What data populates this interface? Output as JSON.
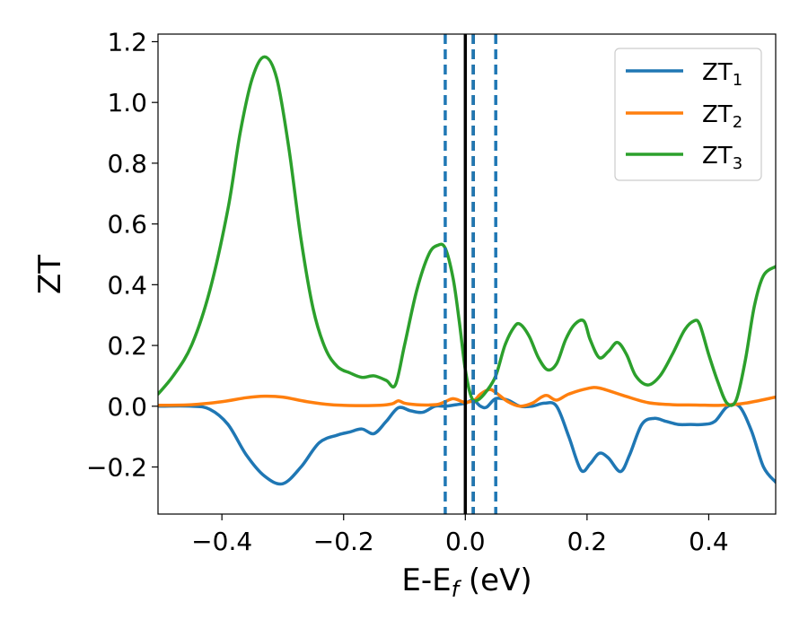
{
  "chart_data": {
    "type": "line",
    "xlabel": "E-E",
    "xlabel_sub": "f",
    "xlabel_unit": " (eV)",
    "ylabel": "ZT",
    "xlim": [
      -0.505,
      0.51
    ],
    "ylim": [
      -0.355,
      1.225
    ],
    "x_ticks": [
      -0.4,
      -0.2,
      0.0,
      0.2,
      0.4
    ],
    "x_tick_labels": [
      "−0.4",
      "−0.2",
      "0.0",
      "0.2",
      "0.4"
    ],
    "y_ticks": [
      -0.2,
      0.0,
      0.2,
      0.4,
      0.6,
      0.8,
      1.0,
      1.2
    ],
    "y_tick_labels": [
      "−0.2",
      "0.0",
      "0.2",
      "0.4",
      "0.6",
      "0.8",
      "1.0",
      "1.2"
    ],
    "grid": false,
    "legend_position": "top-right",
    "vlines": [
      {
        "x": 0.0,
        "style": "solid",
        "color": "#000000"
      },
      {
        "x": 0.013,
        "style": "dashed",
        "color": "#000000"
      },
      {
        "x": -0.033,
        "style": "dashed",
        "color": "#1f77b4"
      },
      {
        "x": 0.013,
        "style": "dashed",
        "color": "#1f77b4"
      },
      {
        "x": 0.05,
        "style": "dashed",
        "color": "#1f77b4"
      }
    ],
    "series": [
      {
        "name": "ZT",
        "subscript": "1",
        "color": "#1f77b4",
        "x": [
          -0.505,
          -0.45,
          -0.42,
          -0.39,
          -0.36,
          -0.33,
          -0.3,
          -0.27,
          -0.24,
          -0.21,
          -0.19,
          -0.17,
          -0.15,
          -0.13,
          -0.11,
          -0.09,
          -0.07,
          -0.05,
          -0.033,
          -0.015,
          0.0,
          0.013,
          0.025,
          0.035,
          0.05,
          0.07,
          0.09,
          0.11,
          0.13,
          0.15,
          0.17,
          0.19,
          0.205,
          0.22,
          0.235,
          0.255,
          0.27,
          0.29,
          0.31,
          0.33,
          0.35,
          0.37,
          0.39,
          0.41,
          0.43,
          0.45,
          0.47,
          0.49,
          0.51
        ],
        "y": [
          0.0,
          0.0,
          -0.01,
          -0.06,
          -0.16,
          -0.23,
          -0.255,
          -0.2,
          -0.12,
          -0.095,
          -0.085,
          -0.075,
          -0.09,
          -0.05,
          -0.005,
          -0.015,
          -0.02,
          0.0,
          0.0,
          0.005,
          0.01,
          0.02,
          0.0,
          -0.003,
          0.025,
          0.02,
          0.0,
          0.0,
          0.01,
          0.0,
          -0.1,
          -0.21,
          -0.19,
          -0.155,
          -0.17,
          -0.215,
          -0.16,
          -0.06,
          -0.04,
          -0.05,
          -0.06,
          -0.06,
          -0.06,
          -0.05,
          -0.002,
          0.0,
          -0.08,
          -0.2,
          -0.25
        ]
      },
      {
        "name": "ZT",
        "subscript": "2",
        "color": "#ff7f0e",
        "x": [
          -0.505,
          -0.45,
          -0.4,
          -0.36,
          -0.33,
          -0.3,
          -0.26,
          -0.22,
          -0.18,
          -0.14,
          -0.12,
          -0.11,
          -0.1,
          -0.08,
          -0.06,
          -0.045,
          -0.033,
          -0.02,
          -0.005,
          0.0,
          0.015,
          0.025,
          0.04,
          0.05,
          0.07,
          0.09,
          0.11,
          0.125,
          0.135,
          0.15,
          0.17,
          0.2,
          0.22,
          0.26,
          0.3,
          0.34,
          0.38,
          0.42,
          0.46,
          0.51
        ],
        "y": [
          0.003,
          0.005,
          0.015,
          0.028,
          0.033,
          0.03,
          0.015,
          0.005,
          0.002,
          0.003,
          0.008,
          0.018,
          0.01,
          0.005,
          0.004,
          0.006,
          0.015,
          0.025,
          0.015,
          0.012,
          0.02,
          0.04,
          0.055,
          0.045,
          0.015,
          0.0,
          0.01,
          0.03,
          0.035,
          0.02,
          0.04,
          0.058,
          0.06,
          0.035,
          0.012,
          0.005,
          0.004,
          0.003,
          0.01,
          0.03
        ]
      },
      {
        "name": "ZT",
        "subscript": "3",
        "color": "#2ca02c",
        "x": [
          -0.505,
          -0.48,
          -0.45,
          -0.42,
          -0.39,
          -0.37,
          -0.35,
          -0.33,
          -0.31,
          -0.29,
          -0.27,
          -0.25,
          -0.23,
          -0.21,
          -0.19,
          -0.17,
          -0.15,
          -0.13,
          -0.115,
          -0.1,
          -0.08,
          -0.06,
          -0.045,
          -0.033,
          -0.02,
          -0.01,
          0.0,
          0.01,
          0.02,
          0.035,
          0.05,
          0.065,
          0.08,
          0.09,
          0.105,
          0.12,
          0.135,
          0.15,
          0.165,
          0.18,
          0.195,
          0.205,
          0.22,
          0.235,
          0.25,
          0.265,
          0.28,
          0.3,
          0.32,
          0.34,
          0.36,
          0.375,
          0.385,
          0.4,
          0.415,
          0.43,
          0.445,
          0.46,
          0.475,
          0.49,
          0.51
        ],
        "y": [
          0.04,
          0.1,
          0.2,
          0.38,
          0.65,
          0.9,
          1.08,
          1.15,
          1.08,
          0.85,
          0.55,
          0.32,
          0.19,
          0.13,
          0.11,
          0.095,
          0.1,
          0.085,
          0.07,
          0.2,
          0.38,
          0.5,
          0.53,
          0.52,
          0.42,
          0.28,
          0.12,
          0.03,
          0.02,
          0.05,
          0.1,
          0.2,
          0.26,
          0.27,
          0.23,
          0.16,
          0.12,
          0.14,
          0.22,
          0.27,
          0.28,
          0.22,
          0.16,
          0.18,
          0.21,
          0.17,
          0.1,
          0.07,
          0.1,
          0.17,
          0.25,
          0.28,
          0.27,
          0.17,
          0.08,
          0.01,
          0.02,
          0.15,
          0.33,
          0.43,
          0.46
        ]
      }
    ]
  }
}
